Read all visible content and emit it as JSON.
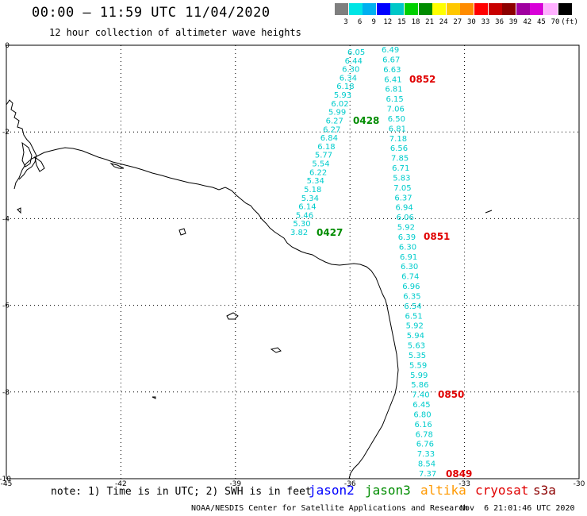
{
  "header": {
    "title": "00:00 – 11:59 UTC 11/04/2020",
    "subtitle": "12 hour collection of altimeter wave heights"
  },
  "legend": {
    "unit": "(ft)",
    "bins": [
      {
        "label": "3",
        "color": "#7f7f7f"
      },
      {
        "label": "6",
        "color": "#00e5e5"
      },
      {
        "label": "9",
        "color": "#00b0f0"
      },
      {
        "label": "12",
        "color": "#0000ff"
      },
      {
        "label": "15",
        "color": "#00c8c8"
      },
      {
        "label": "18",
        "color": "#00d000"
      },
      {
        "label": "21",
        "color": "#008c00"
      },
      {
        "label": "24",
        "color": "#ffff00"
      },
      {
        "label": "27",
        "color": "#ffc800"
      },
      {
        "label": "30",
        "color": "#ff8c00"
      },
      {
        "label": "33",
        "color": "#ff0000"
      },
      {
        "label": "36",
        "color": "#c80000"
      },
      {
        "label": "39",
        "color": "#8c0000"
      },
      {
        "label": "42",
        "color": "#a000a0"
      },
      {
        "label": "45",
        "color": "#d800d8"
      },
      {
        "label": "70",
        "color": "#ffb0ff"
      },
      {
        "label": "",
        "color": "#000000"
      }
    ]
  },
  "map": {
    "lon_range": [
      -45,
      -30
    ],
    "lat_range": [
      -10,
      0
    ],
    "lon_ticks": [
      "-45",
      "-42",
      "-39",
      "-36",
      "-33",
      "-30"
    ],
    "lat_ticks": [
      "0",
      "-2",
      "-4",
      "-6",
      "-8",
      "-10"
    ],
    "tracks": [
      {
        "satellite": "jason3",
        "color": "#00cccc",
        "values": [
          "6.05",
          "6.44",
          "6.30",
          "6.34",
          "6.18",
          "5.93",
          "6.02",
          "5.99",
          "6.27",
          "6.27",
          "6.84",
          "6.18",
          "5.77",
          "5.54",
          "6.22",
          "5.34",
          "5.18",
          "5.34",
          "6.14",
          "5.46",
          "5.30",
          "3.82"
        ],
        "time_labels": [
          {
            "text": "0428",
            "color": "#008c00"
          },
          {
            "text": "0427",
            "color": "#008c00"
          }
        ]
      },
      {
        "satellite": "cryosat",
        "color": "#00cccc",
        "values": [
          "6.49",
          "6.67",
          "6.63",
          "6.41",
          "6.81",
          "6.15",
          "7.06",
          "6.50",
          "6.81",
          "7.18",
          "6.56",
          "7.85",
          "6.71",
          "5.83",
          "7.05",
          "6.37",
          "6.94",
          "6.06",
          "5.92",
          "6.39",
          "6.30",
          "6.91",
          "6.30",
          "6.74",
          "6.96",
          "6.35",
          "6.54",
          "6.51",
          "5.92",
          "5.94",
          "5.63",
          "5.35",
          "5.59",
          "5.99",
          "5.86",
          "7.40",
          "6.45",
          "6.80",
          "6.16",
          "6.78",
          "6.76",
          "7.33",
          "8.54",
          "7.37"
        ],
        "time_labels": [
          {
            "text": "0852",
            "color": "#e00000"
          },
          {
            "text": "0851",
            "color": "#e00000"
          },
          {
            "text": "0850",
            "color": "#e00000"
          },
          {
            "text": "0849",
            "color": "#e00000"
          }
        ]
      }
    ]
  },
  "footer": {
    "note": "note: 1) Time is in UTC; 2) SWH is in feet",
    "satellites": [
      {
        "name": "jason2",
        "color": "#0000ff"
      },
      {
        "name": "jason3",
        "color": "#008c00"
      },
      {
        "name": "altika",
        "color": "#ff9900"
      },
      {
        "name": "cryosat",
        "color": "#e00000"
      },
      {
        "name": "s3a",
        "color": "#8c0000"
      }
    ],
    "credit": "NOAA/NESDIS Center for Satellite Applications and Research",
    "timestamp": "Nov  6 21:01:46 UTC 2020"
  }
}
